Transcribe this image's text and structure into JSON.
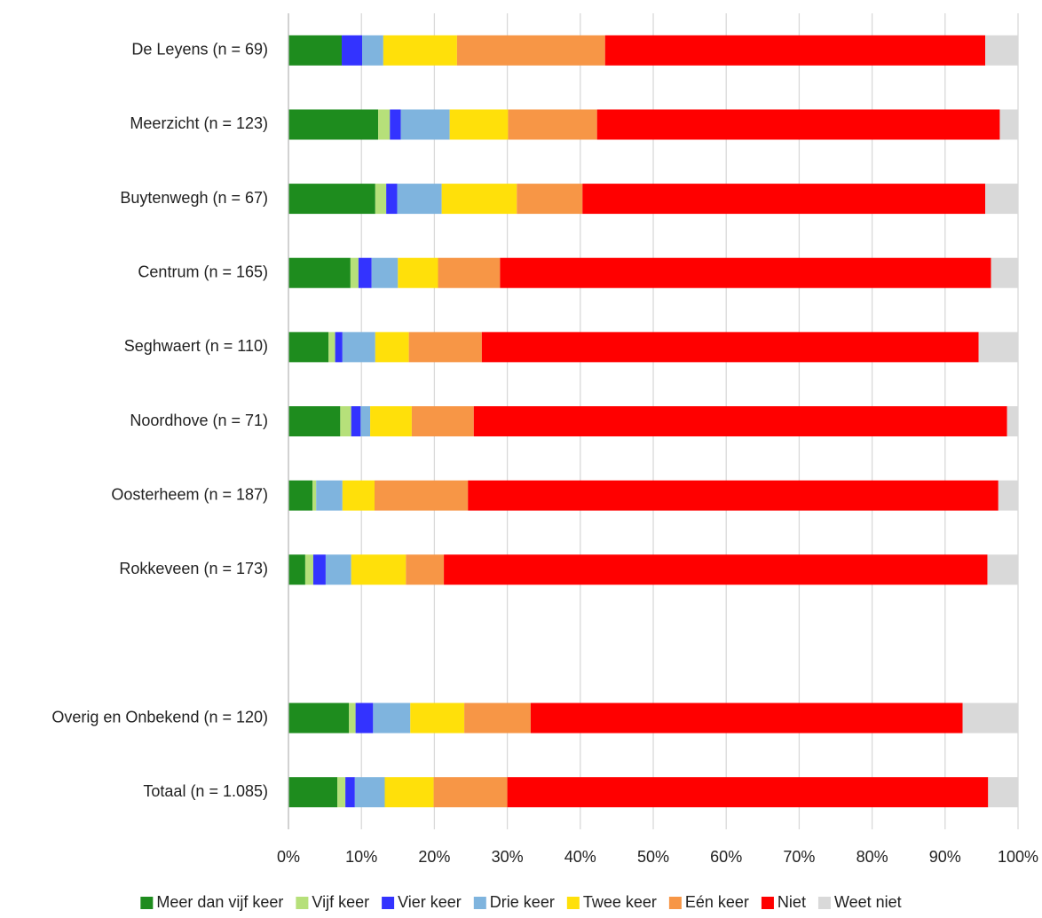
{
  "chart_data": {
    "type": "stacked_barh",
    "categories": [
      "De Leyens (n = 69)",
      "Meerzicht (n = 123)",
      "Buytenwegh (n = 67)",
      "Centrum (n = 165)",
      "Seghwaert (n = 110)",
      "Noordhove (n = 71)",
      "Oosterheem (n = 187)",
      "Rokkeveen (n = 173)",
      null,
      "Overig en Onbekend (n = 120)",
      "Totaal (n = 1.085)"
    ],
    "series": [
      {
        "name": "Meer dan vijf keer",
        "color": "#1e8c1e",
        "values": [
          7.3,
          12.3,
          11.9,
          8.5,
          5.5,
          7.1,
          3.3,
          2.3,
          null,
          8.3,
          6.7
        ]
      },
      {
        "name": "Vijf keer",
        "color": "#b6e07a",
        "values": [
          0,
          1.6,
          1.5,
          1.1,
          0.9,
          1.5,
          0.5,
          1.1,
          null,
          0.9,
          1.1
        ]
      },
      {
        "name": "Vier keer",
        "color": "#3333ff",
        "values": [
          2.8,
          1.5,
          1.5,
          1.8,
          1.0,
          1.3,
          0,
          1.7,
          null,
          2.4,
          1.3
        ]
      },
      {
        "name": "Drie keer",
        "color": "#7fb4de",
        "values": [
          2.9,
          6.7,
          6.1,
          3.6,
          4.5,
          1.3,
          3.6,
          3.5,
          null,
          5.1,
          4.1
        ]
      },
      {
        "name": "Twee keer",
        "color": "#ffe00a",
        "values": [
          10.1,
          8.0,
          10.3,
          5.5,
          4.6,
          5.7,
          4.4,
          7.5,
          null,
          7.4,
          6.7
        ]
      },
      {
        "name": "Eén keer",
        "color": "#f79646",
        "values": [
          20.3,
          12.2,
          9.0,
          8.5,
          10.0,
          8.5,
          12.8,
          5.2,
          null,
          9.1,
          10.1
        ]
      },
      {
        "name": "Niet",
        "color": "#ff0000",
        "values": [
          52.1,
          55.2,
          55.2,
          67.3,
          68.1,
          73.1,
          72.7,
          74.5,
          null,
          59.2,
          65.9
        ]
      },
      {
        "name": "Weet niet",
        "color": "#d9d9d9",
        "values": [
          4.5,
          2.5,
          4.5,
          3.7,
          5.4,
          1.5,
          2.7,
          4.2,
          null,
          7.6,
          4.1
        ]
      }
    ],
    "xlim": [
      0,
      100
    ],
    "xticks": [
      {
        "value": 0,
        "label": "0%"
      },
      {
        "value": 10,
        "label": "10%"
      },
      {
        "value": 20,
        "label": "20%"
      },
      {
        "value": 30,
        "label": "30%"
      },
      {
        "value": 40,
        "label": "40%"
      },
      {
        "value": 50,
        "label": "50%"
      },
      {
        "value": 60,
        "label": "60%"
      },
      {
        "value": 70,
        "label": "70%"
      },
      {
        "value": 80,
        "label": "80%"
      },
      {
        "value": 90,
        "label": "90%"
      },
      {
        "value": 100,
        "label": "100%"
      }
    ],
    "grid": true,
    "legend": "bottom"
  }
}
